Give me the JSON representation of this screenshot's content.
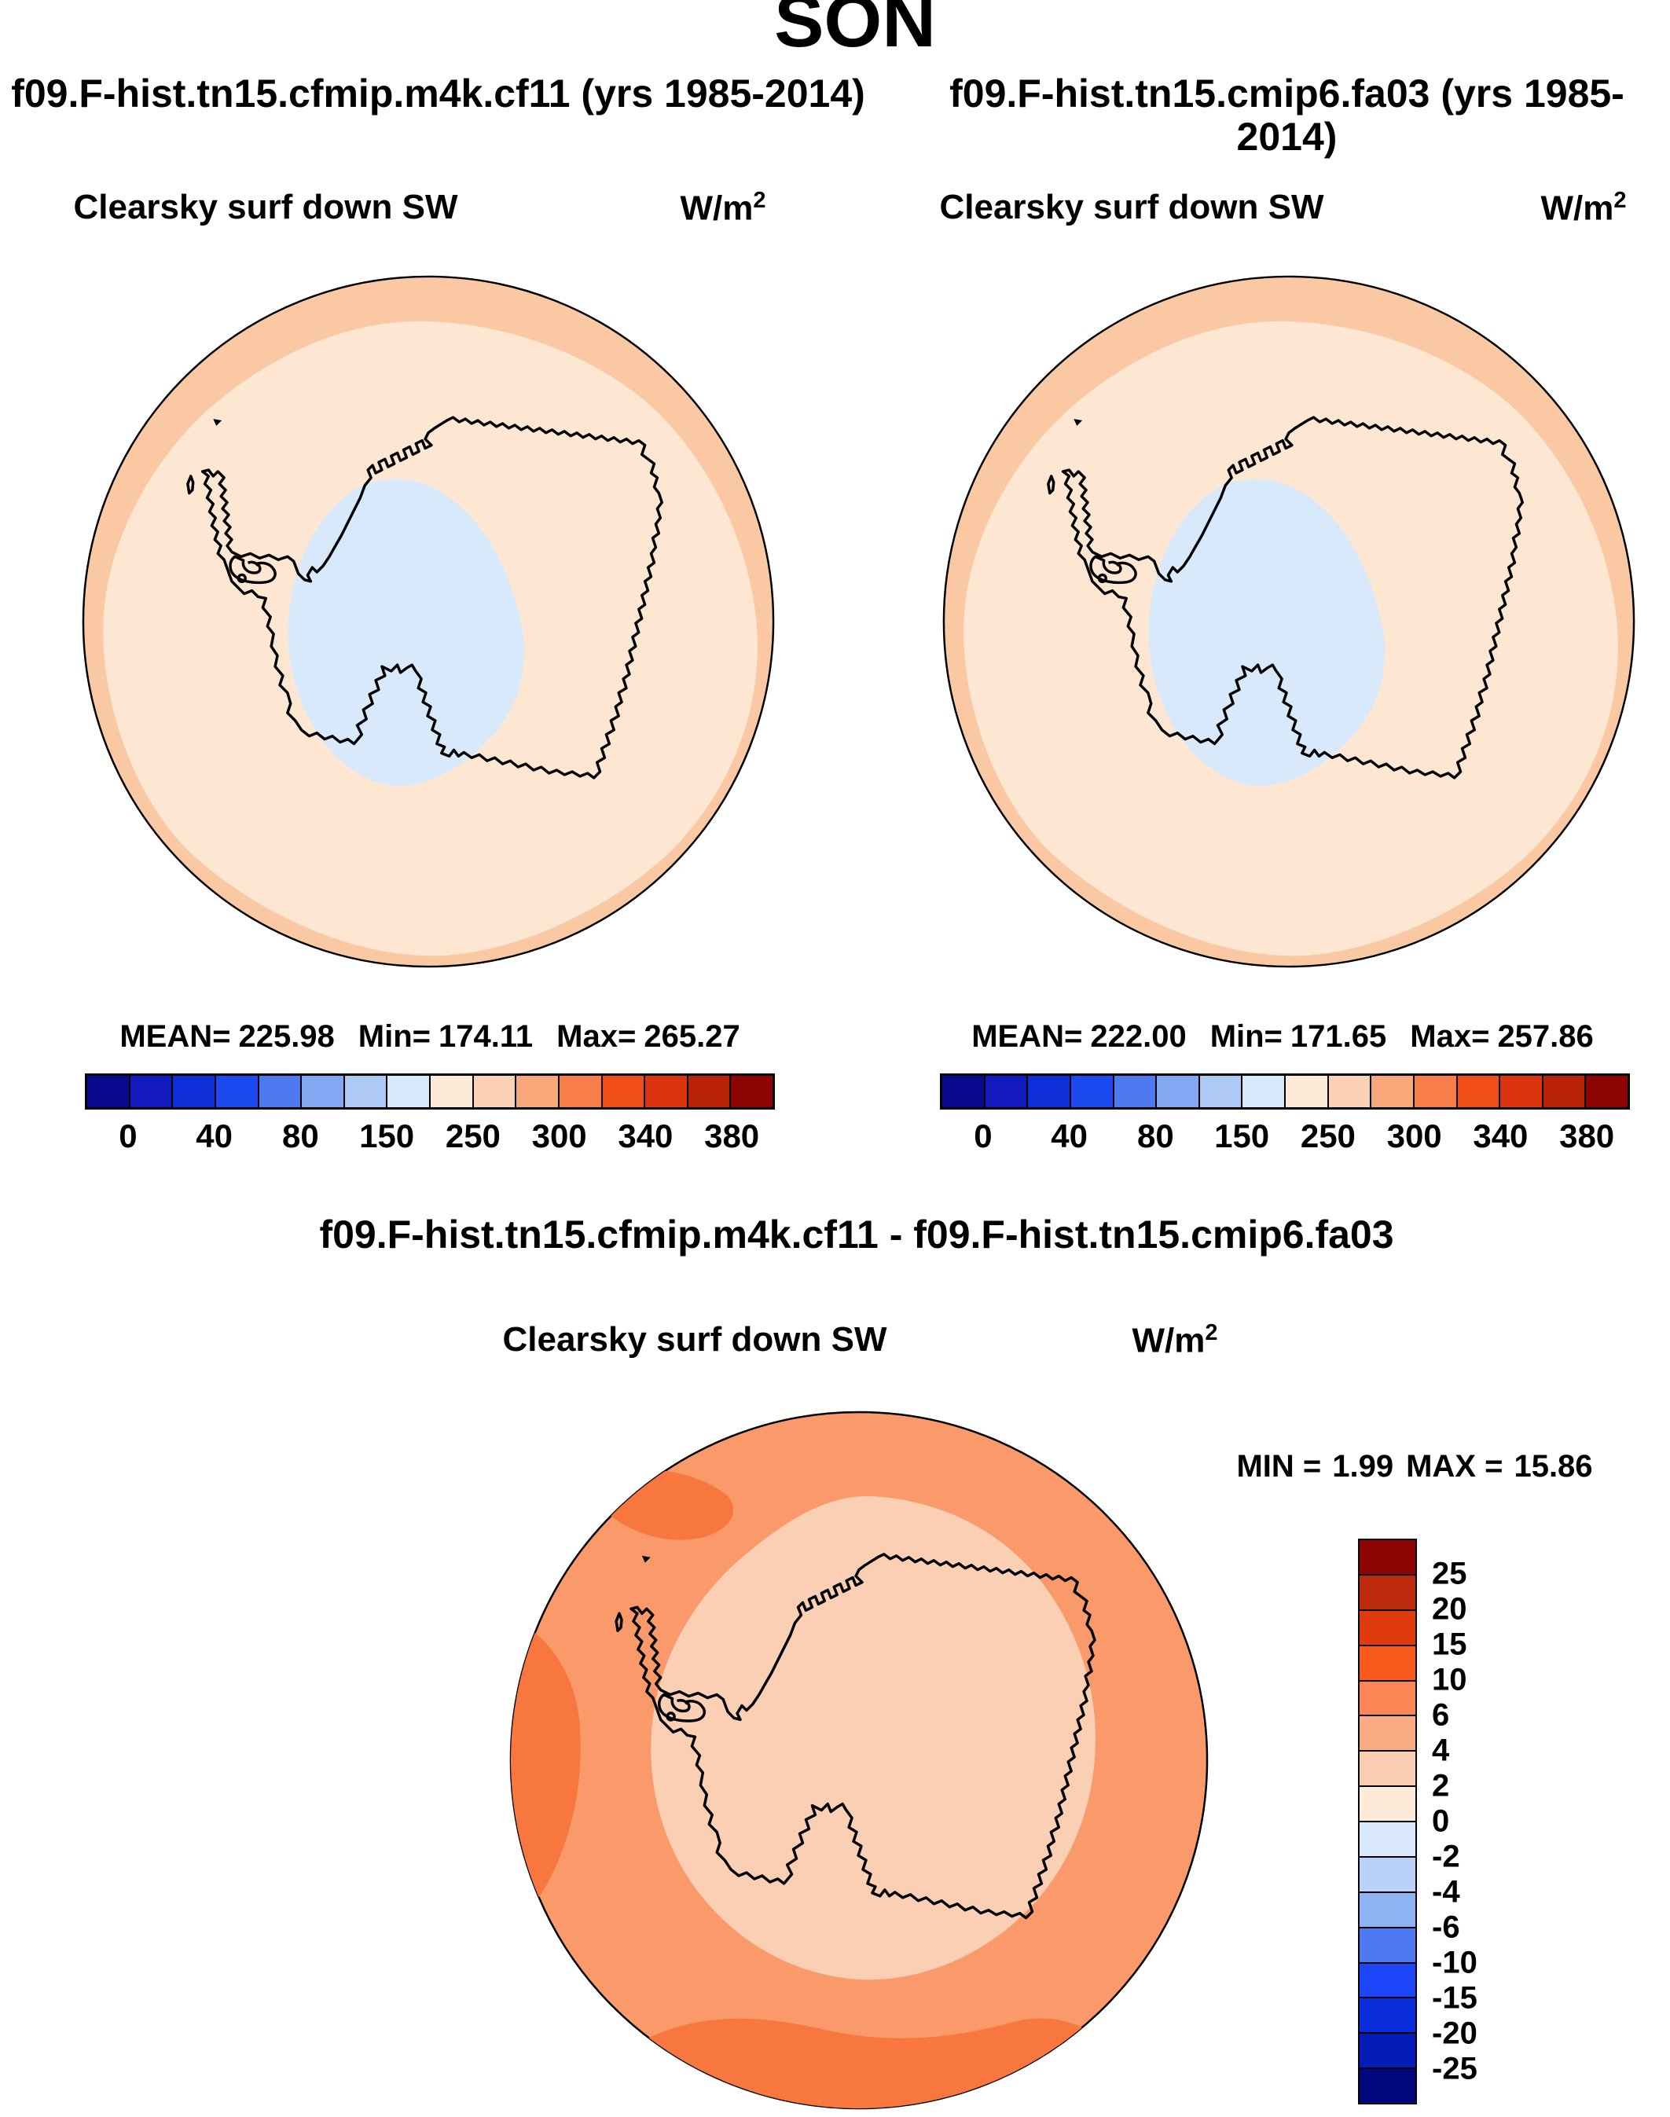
{
  "title": "SON",
  "panels": {
    "left": {
      "case_title": "f09.F-hist.tn15.cfmip.m4k.cf11 (yrs 1985-2014)",
      "field_label": "Clearsky surf down SW",
      "units_base": "W/m",
      "units_exp": "2",
      "stats": {
        "mean_label": "MEAN=",
        "mean": "225.98",
        "min_label": "Min=",
        "min": "174.11",
        "max_label": "Max=",
        "max": "265.27"
      }
    },
    "right": {
      "case_title": "f09.F-hist.tn15.cmip6.fa03 (yrs 1985-2014)",
      "field_label": "Clearsky surf down SW",
      "units_base": "W/m",
      "units_exp": "2",
      "stats": {
        "mean_label": "MEAN=",
        "mean": "222.00",
        "min_label": "Min=",
        "min": "171.65",
        "max_label": "Max=",
        "max": "257.86"
      }
    },
    "diff": {
      "title": "f09.F-hist.tn15.cfmip.m4k.cf11 - f09.F-hist.tn15.cmip6.fa03",
      "field_label": "Clearsky surf down SW",
      "units_base": "W/m",
      "units_exp": "2",
      "minmax": {
        "min_label": "MIN =",
        "min": "1.99",
        "max_label": "MAX =",
        "max": "15.86"
      }
    }
  },
  "colorbar_h": {
    "colors": [
      "#08088E",
      "#1119BF",
      "#0E2FD9",
      "#1D49F1",
      "#4E79F1",
      "#84A7F3",
      "#AFC9F6",
      "#D8E8FB",
      "#FDEBDA",
      "#FBD2B5",
      "#F9A87B",
      "#F87E49",
      "#F04E16",
      "#DB340E",
      "#BB2309",
      "#8E0303"
    ],
    "tick_labels": [
      "0",
      "40",
      "80",
      "150",
      "250",
      "300",
      "340",
      "380"
    ]
  },
  "colorbar_v": {
    "colors": [
      "#8E0303",
      "#BD2A0B",
      "#E03B0D",
      "#FB5A1F",
      "#FA8656",
      "#FAAB84",
      "#FBCDB1",
      "#FDEAD9",
      "#D9E9FB",
      "#BAD2F8",
      "#8FB4F4",
      "#4E79F2",
      "#1C46F8",
      "#0A2EDC",
      "#051CB8",
      "#03077E"
    ],
    "tick_labels": [
      "25",
      "20",
      "15",
      "10",
      "6",
      "4",
      "2",
      "0",
      "-2",
      "-4",
      "-6",
      "-10",
      "-15",
      "-20",
      "-25"
    ]
  },
  "map_colors": {
    "ring": "#FAC9A4",
    "interior": "#FDE7D2",
    "polar_cap": "#D7E9FB",
    "coastline": "#000000"
  },
  "diff_map_colors": {
    "ring": "#FA9A6B",
    "interior": "#FBCFB4",
    "dark_patch": "#F8773F",
    "coastline": "#000000"
  },
  "chart_data": [
    {
      "type": "heatmap",
      "projection": "south_polar_stereographic",
      "season": "SON",
      "title": "f09.F-hist.tn15.cfmip.m4k.cf11 (yrs 1985-2014)",
      "variable": "Clearsky surf down SW",
      "units": "W/m2",
      "stats": {
        "mean": 225.98,
        "min": 174.11,
        "max": 265.27
      },
      "colorbar_tick_labels": [
        0,
        40,
        80,
        150,
        250,
        300,
        340,
        380
      ],
      "legend_position": "bottom",
      "description": "Filled contour map over Antarctica: pale orange ocean ring, cream interior, light blue low-value cap over the pole and West Antarctica"
    },
    {
      "type": "heatmap",
      "projection": "south_polar_stereographic",
      "season": "SON",
      "title": "f09.F-hist.tn15.cmip6.fa03 (yrs 1985-2014)",
      "variable": "Clearsky surf down SW",
      "units": "W/m2",
      "stats": {
        "mean": 222.0,
        "min": 171.65,
        "max": 257.86
      },
      "colorbar_tick_labels": [
        0,
        40,
        80,
        150,
        250,
        300,
        340,
        380
      ],
      "legend_position": "bottom",
      "description": "Same field for the second experiment; visually nearly identical to the first panel"
    },
    {
      "type": "heatmap",
      "projection": "south_polar_stereographic",
      "season": "SON",
      "title": "f09.F-hist.tn15.cfmip.m4k.cf11 - f09.F-hist.tn15.cmip6.fa03",
      "variable": "Clearsky surf down SW",
      "units": "W/m2",
      "stats": {
        "min": 1.99,
        "max": 15.86
      },
      "colorbar_tick_labels": [
        25,
        20,
        15,
        10,
        6,
        4,
        2,
        0,
        -2,
        -4,
        -6,
        -10,
        -15,
        -20,
        -25
      ],
      "legend_position": "right",
      "description": "Difference map: all positive (orange) values, 2-4 W/m2 over the continent, 4-6 W/m2 ring over ocean, 6-10 W/m2 patches at left rim, upper-left and bottom"
    }
  ]
}
